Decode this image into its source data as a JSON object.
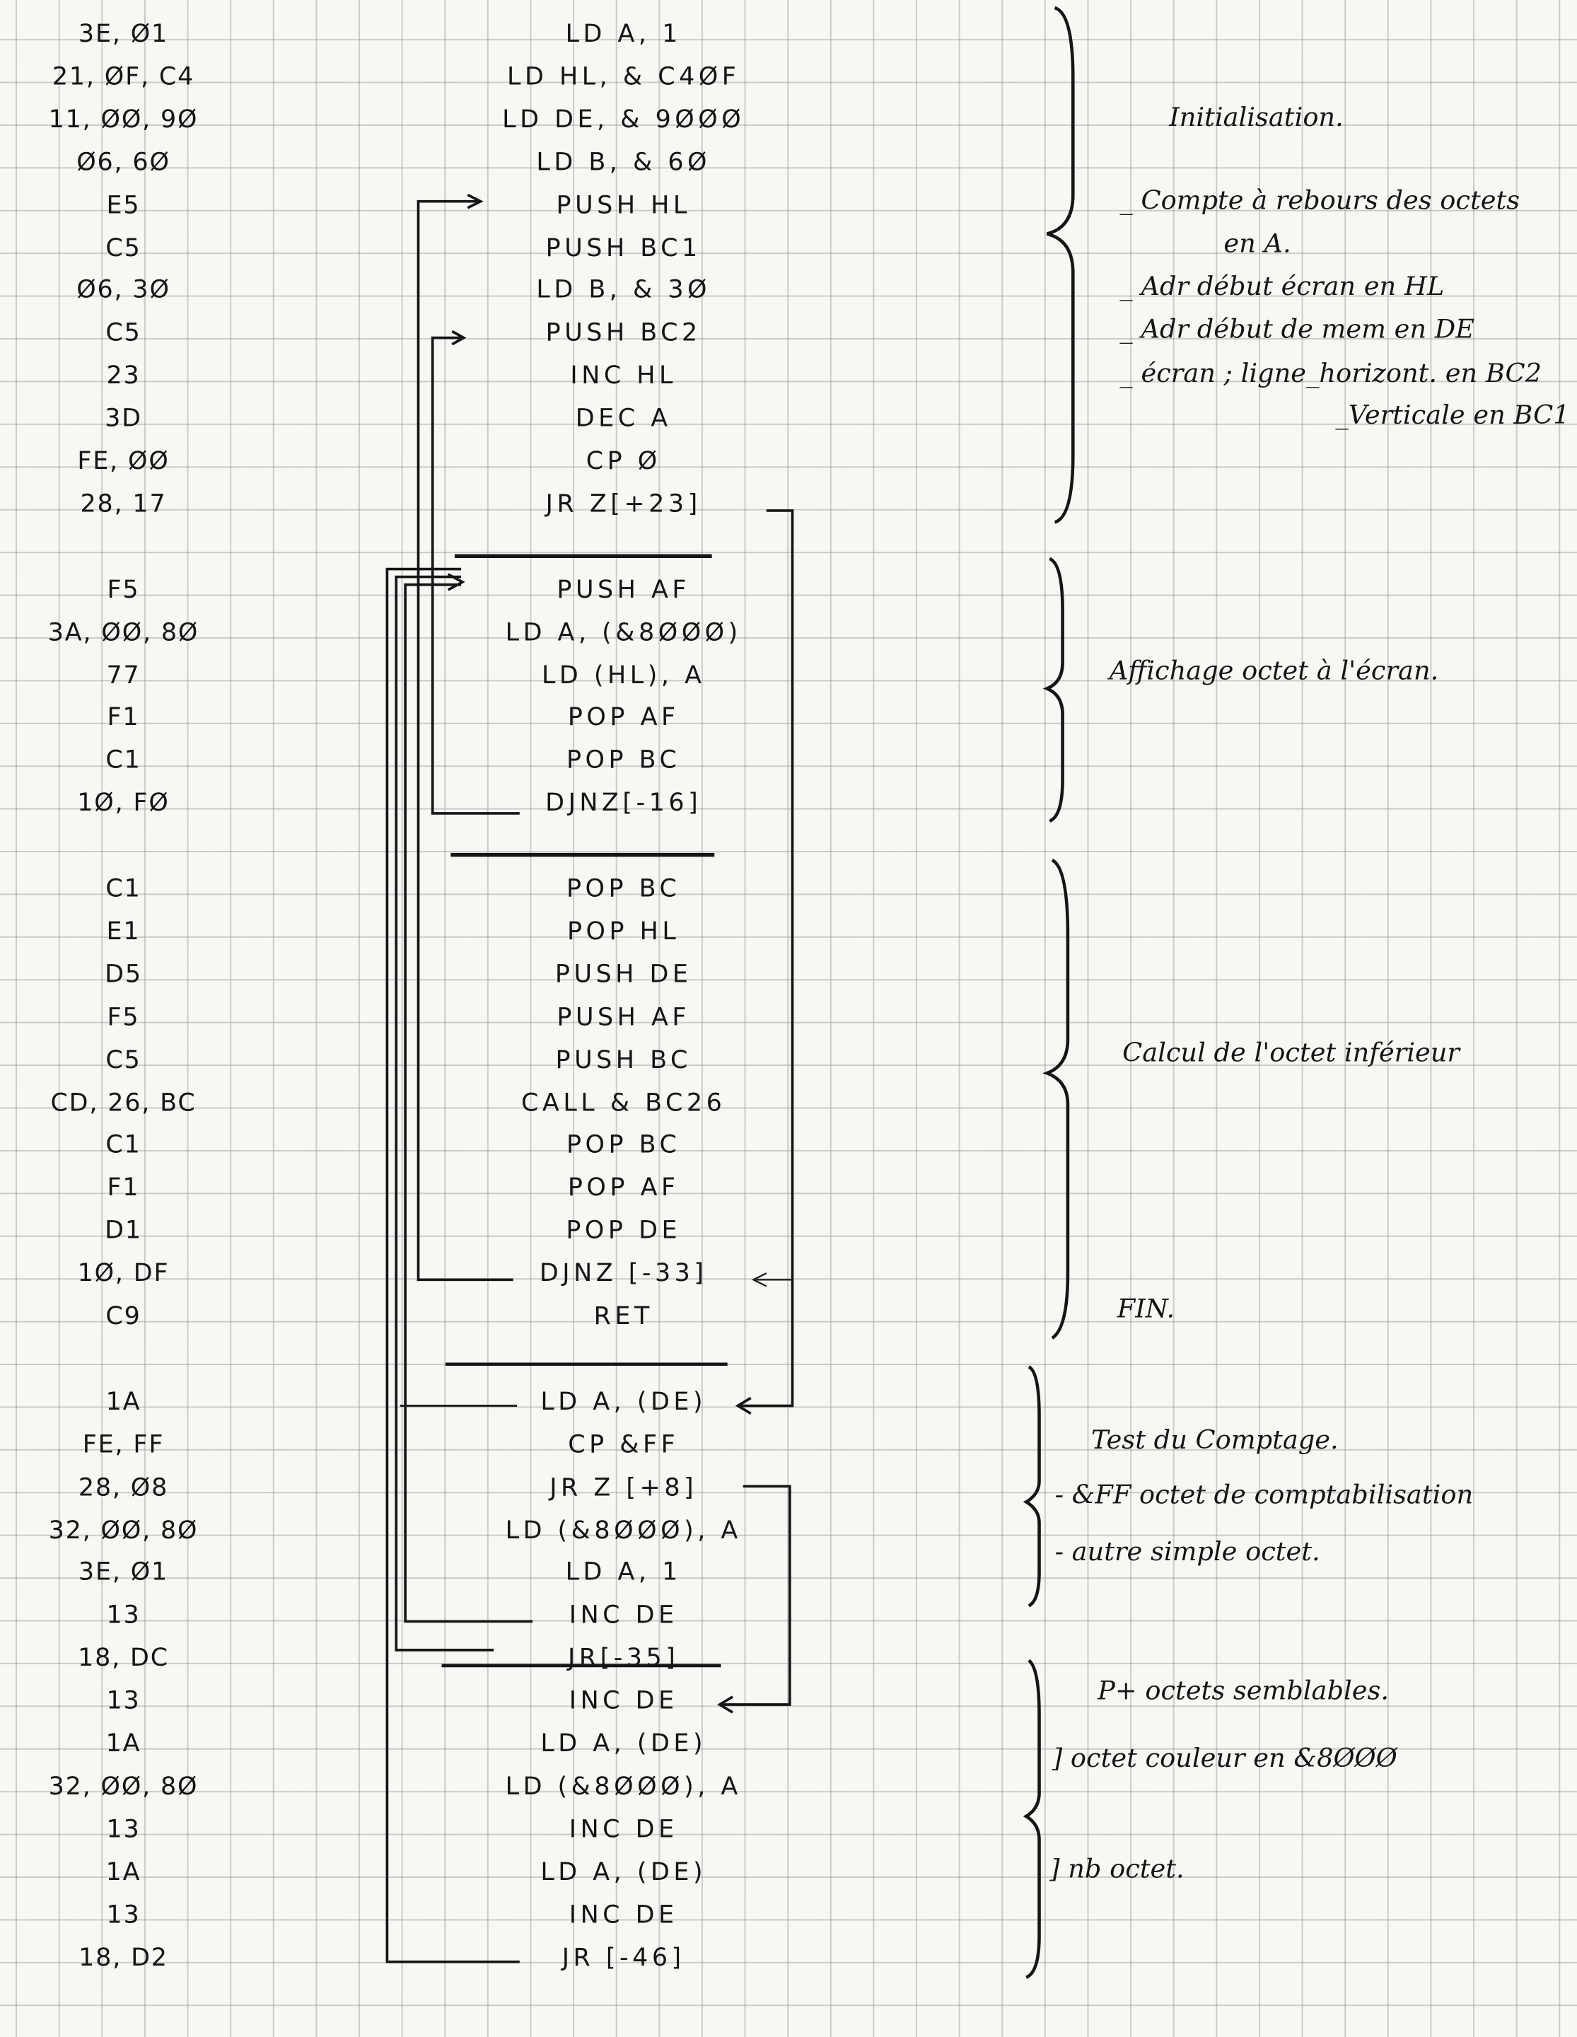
{
  "listing": {
    "blocks": [
      {
        "hex": [
          "3E, Ø1",
          "21, ØF, C4",
          "11, ØØ, 9Ø",
          "Ø6, 6Ø",
          "E5",
          "C5",
          "Ø6, 3Ø",
          "C5",
          "23",
          "3D",
          "FE, ØØ",
          "28, 17"
        ],
        "code": [
          "LD  A, 1",
          "LD  HL, & C4ØF",
          "LD  DE, & 9ØØØ",
          "LD  B, & 6Ø",
          "PUSH  HL",
          "PUSH  BC1",
          "LD  B, & 3Ø",
          "PUSH  BC2",
          "INC  HL",
          "DEC  A",
          "CP Ø",
          "JR  Z[+23]"
        ]
      },
      {
        "hex": [
          "F5",
          "3A, ØØ, 8Ø",
          "77",
          "F1",
          "C1",
          "1Ø, FØ"
        ],
        "code": [
          "PUSH  AF",
          "LD  A, (&8ØØØ)",
          "LD (HL), A",
          "POP  AF",
          "POP  BC",
          "DJNZ[-16]"
        ]
      },
      {
        "hex": [
          "C1",
          "E1",
          "D5",
          "F5",
          "C5",
          "CD, 26, BC",
          "C1",
          "F1",
          "D1",
          "1Ø, DF",
          "C9"
        ],
        "code": [
          "POP  BC",
          "POP  HL",
          "PUSH  DE",
          "PUSH  AF",
          "PUSH  BC",
          "CALL & BC26",
          "POP  BC",
          "POP  AF",
          "POP  DE",
          "DJNZ [-33]",
          "RET"
        ]
      },
      {
        "hex": [
          "1A",
          "FE, FF",
          "28, Ø8",
          "32, ØØ, 8Ø",
          "3E, Ø1",
          "13",
          "18, DC"
        ],
        "code": [
          "LD  A, (DE)",
          "CP &FF",
          "JR  Z [+8]",
          "LD  (&8ØØØ), A",
          "LD  A, 1",
          "INC  DE",
          "JR[-35]"
        ]
      },
      {
        "hex": [
          "13",
          "1A",
          "32, ØØ, 8Ø",
          "13",
          "1A",
          "13",
          "18, D2"
        ],
        "code": [
          "INC  DE",
          "LD A, (DE)",
          "LD  (&8ØØØ), A",
          "INC  DE",
          "LD  A, (DE)",
          "INC  DE",
          "JR [-46]"
        ]
      }
    ]
  },
  "notes": {
    "init_title": "Initialisation.",
    "init_1a": "_  Compte à rebours  des octets",
    "init_1b": "en  A.",
    "init_2": "_  Adr  début  écran  en  HL",
    "init_3": "_  Adr début  de  mem  en  DE",
    "init_4": "_  écran ; ligne_horizont.  en  BC2",
    "init_5": "_Verticale  en  BC1",
    "display": "Affichage   octet  à  l'écran.",
    "calc": "Calcul   de  l'octet  inférieur",
    "end": "FIN.",
    "test_title": "Test   du   Comptage.",
    "test_1": "- &FF  octet  de  comptabilisation",
    "test_2": "-  autre   simple  octet.",
    "rep_title": "P+  octets   semblables.",
    "rep_1": "]   octet  couleur  en  &8ØØØ",
    "rep_2": "]   nb   octet."
  },
  "colors": {
    "ink": "#151515",
    "paper": "#f7f7f4",
    "grid": "#9a9a9a"
  }
}
